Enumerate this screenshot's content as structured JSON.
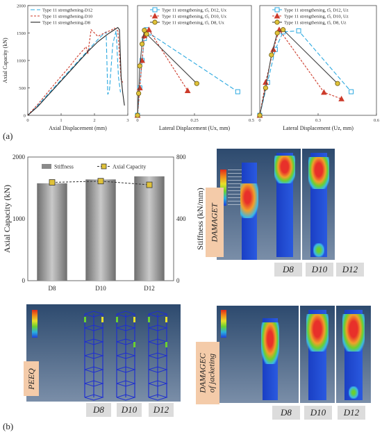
{
  "panel_labels": {
    "a": "(a)",
    "b": "(b)"
  },
  "chart_data": [
    {
      "type": "line",
      "id": "axial-curve",
      "xlabel": "Axial Displacement (mm)",
      "ylabel": "Axial Capacity (kN)",
      "xlim": [
        0,
        3
      ],
      "ylim": [
        0,
        2000
      ],
      "xticks": [
        "0",
        "1",
        "2",
        "3"
      ],
      "yticks": [
        "0",
        "500",
        "1000",
        "1500",
        "2000"
      ],
      "legend": "top-left",
      "series": [
        {
          "name": "Type 11 strengthening-D12",
          "color": "#29a8e0",
          "dash": "6,3",
          "x": [
            0,
            0.3,
            0.6,
            0.9,
            1.2,
            1.5,
            1.8,
            2.1,
            2.3,
            2.35,
            2.4,
            2.45,
            2.55,
            2.65,
            2.72,
            2.78
          ],
          "y": [
            0,
            180,
            380,
            580,
            780,
            980,
            1180,
            1380,
            1500,
            1520,
            380,
            460,
            1300,
            1540,
            700,
            420
          ]
        },
        {
          "name": "Type 11 strengthening-D10",
          "color": "#cc3a2a",
          "dash": "3,2",
          "x": [
            0,
            0.3,
            0.6,
            0.9,
            1.2,
            1.5,
            1.75,
            1.8,
            1.9,
            2.1,
            2.3,
            2.5,
            2.6,
            2.7,
            2.8,
            2.85
          ],
          "y": [
            0,
            200,
            420,
            640,
            850,
            1080,
            1250,
            1120,
            1560,
            1440,
            1500,
            1550,
            1590,
            1540,
            650,
            600
          ]
        },
        {
          "name": "Type 11 strengthening-D8",
          "color": "#222222",
          "dash": "",
          "x": [
            0,
            0.3,
            0.6,
            0.9,
            1.2,
            1.5,
            1.8,
            2.1,
            2.4,
            2.6,
            2.7,
            2.75,
            2.8,
            2.85,
            2.9
          ],
          "y": [
            0,
            160,
            360,
            560,
            760,
            960,
            1160,
            1340,
            1480,
            1560,
            1600,
            1560,
            700,
            400,
            180
          ]
        }
      ]
    },
    {
      "type": "line",
      "id": "lateral-x",
      "xlabel": "Lateral Displacement (Ux, mm)",
      "ylabel": "",
      "xlim": [
        0,
        0.5
      ],
      "ylim": [
        0,
        2000
      ],
      "xticks": [
        "0",
        "0.25",
        "0.5"
      ],
      "legend": "top-right",
      "series": [
        {
          "name": "Type 11 strengthening, t5, D12, Ux",
          "color": "#29a8e0",
          "marker": "square",
          "dash": "6,3",
          "x": [
            0,
            0.01,
            0.02,
            0.03,
            0.04,
            0.05,
            0.44
          ],
          "y": [
            0,
            500,
            1000,
            1400,
            1560,
            1500,
            430
          ]
        },
        {
          "name": "Type 11 strengthening, t5, D10, Ux",
          "color": "#cc3a2a",
          "marker": "triangle",
          "dash": "3,2",
          "x": [
            0,
            0.01,
            0.02,
            0.03,
            0.05,
            0.22
          ],
          "y": [
            0,
            500,
            1000,
            1450,
            1560,
            450
          ]
        },
        {
          "name": "Type 11 strengthening, t5, D8, Ux",
          "color": "#444444",
          "marker": "circle",
          "dash": "",
          "x": [
            0,
            0.005,
            0.01,
            0.02,
            0.03,
            0.04,
            0.26
          ],
          "y": [
            0,
            400,
            900,
            1300,
            1550,
            1480,
            580
          ]
        }
      ]
    },
    {
      "type": "line",
      "id": "lateral-z",
      "xlabel": "Lateral Displacement (Uz, mm)",
      "ylabel": "",
      "xlim": [
        0,
        0.6
      ],
      "ylim": [
        0,
        2000
      ],
      "xticks": [
        "0",
        "0.3",
        "0.6"
      ],
      "legend": "top-right",
      "series": [
        {
          "name": "Type 11 strengthening, t5, D12, Uz",
          "color": "#29a8e0",
          "marker": "square",
          "dash": "6,3",
          "x": [
            0,
            0.04,
            0.08,
            0.12,
            0.2,
            0.47
          ],
          "y": [
            0,
            600,
            1200,
            1520,
            1540,
            430
          ]
        },
        {
          "name": "Type 11 strengthening, t5, D10, Uz",
          "color": "#cc3a2a",
          "marker": "triangle",
          "dash": "3,2",
          "x": [
            0,
            0.03,
            0.07,
            0.1,
            0.33,
            0.42
          ],
          "y": [
            0,
            600,
            1200,
            1560,
            420,
            300
          ]
        },
        {
          "name": "Type 11 strengthening, t5, D8, Uz",
          "color": "#444444",
          "marker": "circle",
          "dash": "",
          "x": [
            0,
            0.03,
            0.06,
            0.09,
            0.12,
            0.4
          ],
          "y": [
            0,
            500,
            1100,
            1500,
            1560,
            580
          ]
        }
      ]
    },
    {
      "type": "bar",
      "id": "stiffness-capacity",
      "categories": [
        "D8",
        "D10",
        "D12"
      ],
      "ylabel": "Axial Capacity (kN)",
      "y2label": "Stiffness (kN/mm)",
      "ylim": [
        0,
        2000
      ],
      "y2lim": [
        0,
        800
      ],
      "yticks": [
        "0",
        "1000",
        "2000"
      ],
      "y2ticks": [
        "0",
        "400",
        "800"
      ],
      "legend": "top",
      "series": [
        {
          "name": "Stiffness",
          "kind": "bar",
          "axis": "y2",
          "color": "#8a8a8a",
          "values": [
            630,
            655,
            675
          ]
        },
        {
          "name": "Axial Capacity",
          "kind": "line",
          "axis": "y",
          "color": "#333333",
          "marker_color": "#e0c23a",
          "values": [
            1590,
            1610,
            1550
          ]
        }
      ]
    }
  ],
  "fem": {
    "damaget": {
      "tag": "DAMAGET",
      "labels": [
        "D8",
        "D10",
        "D12"
      ]
    },
    "peeq": {
      "tag": "PEEQ",
      "labels": [
        "D8",
        "D10",
        "D12"
      ]
    },
    "damagec": {
      "tag": "DAMAGEC of jacketing",
      "labels": [
        "D8",
        "D10",
        "D12"
      ]
    }
  }
}
